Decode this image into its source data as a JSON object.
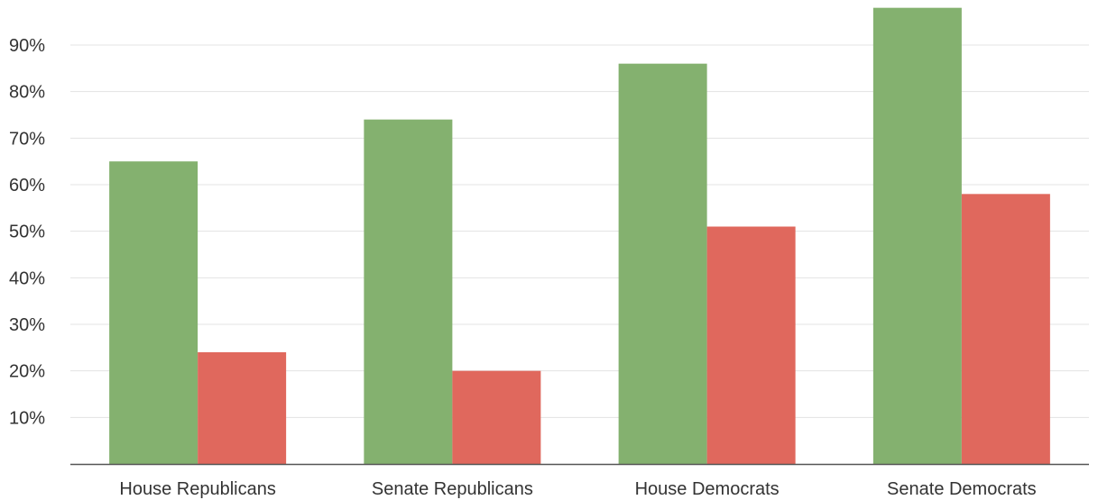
{
  "chart_data": {
    "type": "bar",
    "title": "",
    "xlabel": "",
    "ylabel": "",
    "categories": [
      "House Republicans",
      "Senate Republicans",
      "House Democrats",
      "Senate Democrats"
    ],
    "series": [
      {
        "values": [
          65,
          74,
          86,
          98
        ],
        "color": "#84b16f"
      },
      {
        "values": [
          24,
          20,
          51,
          58
        ],
        "color": "#e0685d"
      }
    ],
    "yticks": [
      {
        "value": 10,
        "label": "10%"
      },
      {
        "value": 20,
        "label": "20%"
      },
      {
        "value": 30,
        "label": "30%"
      },
      {
        "value": 40,
        "label": "40%"
      },
      {
        "value": 50,
        "label": "50%"
      },
      {
        "value": 60,
        "label": "60%"
      },
      {
        "value": 70,
        "label": "70%"
      },
      {
        "value": 80,
        "label": "80%"
      },
      {
        "value": 90,
        "label": "90%"
      }
    ],
    "ylim": [
      0,
      100
    ],
    "grid": true,
    "colors": {
      "grid": "#e3e3e3",
      "axis": "#555555",
      "text": "#333333"
    }
  }
}
